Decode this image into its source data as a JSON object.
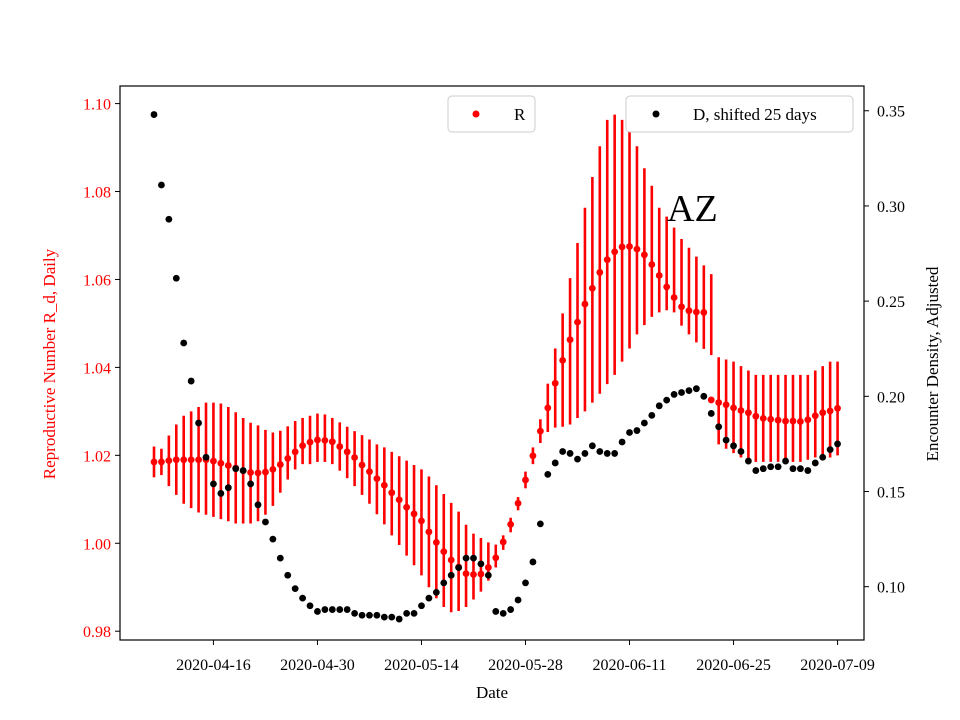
{
  "chart_data": {
    "type": "scatter",
    "annotation": "AZ",
    "xlabel": "Date",
    "ylabel_left": "Reproductive Number R_d, Daily",
    "ylabel_right": "Encounter Density, Adjusted",
    "x_tick_labels": [
      "2020-04-16",
      "2020-04-30",
      "2020-05-14",
      "2020-05-28",
      "2020-06-11",
      "2020-06-25",
      "2020-07-09"
    ],
    "x_start_date": "2020-04-08",
    "ylim_left": [
      0.978,
      1.104
    ],
    "ylim_right": [
      0.072,
      0.363
    ],
    "y_ticks_left": [
      "0.98",
      "1.00",
      "1.02",
      "1.04",
      "1.06",
      "1.08",
      "1.10"
    ],
    "y_ticks_right": [
      "0.10",
      "0.15",
      "0.20",
      "0.25",
      "0.30",
      "0.35"
    ],
    "grid": false,
    "legend_left": {
      "placement": "top-center",
      "label": "R"
    },
    "legend_right": {
      "placement": "top-right",
      "label": "D, shifted 25 days"
    },
    "colors": {
      "R": "#ff0000",
      "D": "#000000",
      "left_axis": "#ff0000",
      "right_axis": "#000000"
    },
    "series": [
      {
        "name": "R",
        "axis": "left",
        "color": "#ff0000",
        "x": [
          "2020-04-08",
          "2020-04-09",
          "2020-04-10",
          "2020-04-11",
          "2020-04-12",
          "2020-04-13",
          "2020-04-14",
          "2020-04-15",
          "2020-04-16",
          "2020-04-17",
          "2020-04-18",
          "2020-04-19",
          "2020-04-20",
          "2020-04-21",
          "2020-04-22",
          "2020-04-23",
          "2020-04-24",
          "2020-04-25",
          "2020-04-26",
          "2020-04-27",
          "2020-04-28",
          "2020-04-29",
          "2020-04-30",
          "2020-05-01",
          "2020-05-02",
          "2020-05-03",
          "2020-05-04",
          "2020-05-05",
          "2020-05-06",
          "2020-05-07",
          "2020-05-08",
          "2020-05-09",
          "2020-05-10",
          "2020-05-11",
          "2020-05-12",
          "2020-05-13",
          "2020-05-14",
          "2020-05-15",
          "2020-05-16",
          "2020-05-17",
          "2020-05-18",
          "2020-05-19",
          "2020-05-20",
          "2020-05-21",
          "2020-05-22",
          "2020-05-23",
          "2020-05-24",
          "2020-05-25",
          "2020-05-26",
          "2020-05-27",
          "2020-05-28",
          "2020-05-29",
          "2020-05-30",
          "2020-05-31",
          "2020-06-01",
          "2020-06-02",
          "2020-06-03",
          "2020-06-04",
          "2020-06-05",
          "2020-06-06",
          "2020-06-07",
          "2020-06-08",
          "2020-06-09",
          "2020-06-10",
          "2020-06-11",
          "2020-06-12",
          "2020-06-13",
          "2020-06-14",
          "2020-06-15",
          "2020-06-16",
          "2020-06-17",
          "2020-06-18",
          "2020-06-19",
          "2020-06-20",
          "2020-06-21",
          "2020-06-22",
          "2020-06-23",
          "2020-06-24",
          "2020-06-25",
          "2020-06-26",
          "2020-06-27",
          "2020-06-28",
          "2020-06-29",
          "2020-06-30",
          "2020-07-01",
          "2020-07-02",
          "2020-07-03",
          "2020-07-04",
          "2020-07-05",
          "2020-07-06",
          "2020-07-07",
          "2020-07-08",
          "2020-07-09"
        ],
        "y": [
          1.0185,
          1.0185,
          1.0188,
          1.019,
          1.019,
          1.019,
          1.019,
          1.019,
          1.0187,
          1.0182,
          1.0177,
          1.0171,
          1.0165,
          1.0161,
          1.016,
          1.0162,
          1.0168,
          1.0179,
          1.0193,
          1.0208,
          1.0222,
          1.023,
          1.0235,
          1.0234,
          1.0231,
          1.022,
          1.0208,
          1.0195,
          1.0178,
          1.0163,
          1.0147,
          1.0132,
          1.0115,
          1.0099,
          1.0082,
          1.0067,
          1.0051,
          1.0026,
          1.0002,
          0.9981,
          0.9962,
          0.9946,
          0.9931,
          0.9929,
          0.993,
          0.9945,
          0.9967,
          1.0003,
          1.0043,
          1.0091,
          1.0144,
          1.0199,
          1.0255,
          1.0308,
          1.0364,
          1.0416,
          1.0463,
          1.0503,
          1.0544,
          1.058,
          1.0616,
          1.0645,
          1.0663,
          1.0674,
          1.0675,
          1.0669,
          1.0656,
          1.0634,
          1.0609,
          1.0583,
          1.0559,
          1.0538,
          1.0529,
          1.0526,
          1.0525,
          1.0326,
          1.032,
          1.0315,
          1.0308,
          1.0302,
          1.0297,
          1.0289,
          1.0284,
          1.0282,
          1.028,
          1.0278,
          1.0278,
          1.0277,
          1.0281,
          1.029,
          1.0297,
          1.0301,
          1.0307
        ],
        "err_low": [
          1.015,
          1.0155,
          1.013,
          1.011,
          1.009,
          1.008,
          1.007,
          1.0065,
          1.006,
          1.0055,
          1.005,
          1.0045,
          1.0045,
          1.0045,
          1.005,
          1.0065,
          1.0085,
          1.0115,
          1.0145,
          1.0168,
          1.018,
          1.018,
          1.0185,
          1.0185,
          1.018,
          1.0165,
          1.0148,
          1.013,
          1.011,
          1.009,
          1.0066,
          1.0043,
          1.0018,
          0.9996,
          0.9972,
          0.995,
          0.9927,
          0.99,
          0.9875,
          0.9855,
          0.9843,
          0.9846,
          0.9855,
          0.9872,
          0.989,
          0.9915,
          0.9945,
          0.9985,
          1.0025,
          1.0075,
          1.0125,
          1.018,
          1.0228,
          1.0253,
          1.0263,
          1.0265,
          1.027,
          1.0285,
          1.03,
          1.032,
          1.034,
          1.0362,
          1.0383,
          1.0413,
          1.0443,
          1.0475,
          1.0496,
          1.0515,
          1.0525,
          1.053,
          1.0525,
          1.0495,
          1.0475,
          1.0457,
          1.0442,
          1.0428,
          1.0225,
          1.0215,
          1.0205,
          1.0195,
          1.019,
          1.0185,
          1.0185,
          1.0185,
          1.0185,
          1.0185,
          1.0185,
          1.0185,
          1.019,
          1.0195,
          1.0195,
          1.0195,
          1.02
        ],
        "err_high": [
          1.022,
          1.0215,
          1.0245,
          1.027,
          1.029,
          1.03,
          1.031,
          1.032,
          1.032,
          1.0318,
          1.031,
          1.0298,
          1.0285,
          1.0274,
          1.0268,
          1.0258,
          1.0252,
          1.0256,
          1.0266,
          1.0278,
          1.0285,
          1.029,
          1.0295,
          1.0293,
          1.0285,
          1.0275,
          1.0265,
          1.0255,
          1.0246,
          1.0236,
          1.0225,
          1.0218,
          1.0208,
          1.0198,
          1.0188,
          1.0178,
          1.0168,
          1.0152,
          1.0132,
          1.0112,
          1.0092,
          1.0072,
          1.0042,
          1.0022,
          1.0012,
          1.0002,
          0.9997,
          1.0018,
          1.0058,
          1.0105,
          1.0163,
          1.0218,
          1.0282,
          1.0363,
          1.0443,
          1.0523,
          1.0603,
          1.0683,
          1.0763,
          1.0833,
          1.0903,
          1.0963,
          1.0975,
          1.0963,
          1.0943,
          1.0903,
          1.0853,
          1.0813,
          1.0763,
          1.0743,
          1.0718,
          1.0692,
          1.0672,
          1.0652,
          1.0632,
          1.0612,
          1.0423,
          1.0418,
          1.0413,
          1.0403,
          1.0393,
          1.0383,
          1.0383,
          1.0383,
          1.0383,
          1.0383,
          1.0383,
          1.0383,
          1.0383,
          1.0393,
          1.0403,
          1.0413,
          1.0413
        ]
      },
      {
        "name": "D, shifted 25 days",
        "axis": "right",
        "color": "#000000",
        "x": [
          "2020-04-08",
          "2020-04-09",
          "2020-04-10",
          "2020-04-11",
          "2020-04-12",
          "2020-04-13",
          "2020-04-14",
          "2020-04-15",
          "2020-04-16",
          "2020-04-17",
          "2020-04-18",
          "2020-04-19",
          "2020-04-20",
          "2020-04-21",
          "2020-04-22",
          "2020-04-23",
          "2020-04-24",
          "2020-04-25",
          "2020-04-26",
          "2020-04-27",
          "2020-04-28",
          "2020-04-29",
          "2020-04-30",
          "2020-05-01",
          "2020-05-02",
          "2020-05-03",
          "2020-05-04",
          "2020-05-05",
          "2020-05-06",
          "2020-05-07",
          "2020-05-08",
          "2020-05-09",
          "2020-05-10",
          "2020-05-11",
          "2020-05-12",
          "2020-05-13",
          "2020-05-14",
          "2020-05-15",
          "2020-05-16",
          "2020-05-17",
          "2020-05-18",
          "2020-05-19",
          "2020-05-20",
          "2020-05-21",
          "2020-05-22",
          "2020-05-23",
          "2020-05-24",
          "2020-05-25",
          "2020-05-26",
          "2020-05-27",
          "2020-05-28",
          "2020-05-29",
          "2020-05-30",
          "2020-05-31",
          "2020-06-01",
          "2020-06-02",
          "2020-06-03",
          "2020-06-04",
          "2020-06-05",
          "2020-06-06",
          "2020-06-07",
          "2020-06-08",
          "2020-06-09",
          "2020-06-10",
          "2020-06-11",
          "2020-06-12",
          "2020-06-13",
          "2020-06-14",
          "2020-06-15",
          "2020-06-16",
          "2020-06-17",
          "2020-06-18",
          "2020-06-19",
          "2020-06-20",
          "2020-06-21",
          "2020-06-22",
          "2020-06-23",
          "2020-06-24",
          "2020-06-25",
          "2020-06-26",
          "2020-06-27",
          "2020-06-28",
          "2020-06-29",
          "2020-06-30",
          "2020-07-01",
          "2020-07-02",
          "2020-07-03",
          "2020-07-04",
          "2020-07-05",
          "2020-07-06",
          "2020-07-07",
          "2020-07-08",
          "2020-07-09"
        ],
        "y": [
          0.348,
          0.311,
          0.293,
          0.262,
          0.228,
          0.208,
          0.186,
          0.168,
          0.154,
          0.149,
          0.152,
          0.162,
          0.161,
          0.154,
          0.143,
          0.134,
          0.125,
          0.115,
          0.106,
          0.099,
          0.094,
          0.09,
          0.087,
          0.088,
          0.088,
          0.088,
          0.088,
          0.086,
          0.085,
          0.085,
          0.085,
          0.084,
          0.084,
          0.083,
          0.086,
          0.086,
          0.09,
          0.094,
          0.097,
          0.102,
          0.106,
          0.11,
          0.115,
          0.115,
          0.112,
          0.106,
          0.087,
          0.086,
          0.088,
          0.093,
          0.102,
          0.113,
          0.133,
          0.159,
          0.165,
          0.171,
          0.17,
          0.167,
          0.17,
          0.174,
          0.171,
          0.17,
          0.17,
          0.176,
          0.181,
          0.182,
          0.186,
          0.19,
          0.195,
          0.198,
          0.201,
          0.202,
          0.203,
          0.204,
          0.2,
          0.191,
          0.184,
          0.177,
          0.174,
          0.171,
          0.166,
          0.161,
          0.162,
          0.163,
          0.163,
          0.166,
          0.162,
          0.162,
          0.161,
          0.165,
          0.168,
          0.172,
          0.175
        ]
      }
    ]
  }
}
